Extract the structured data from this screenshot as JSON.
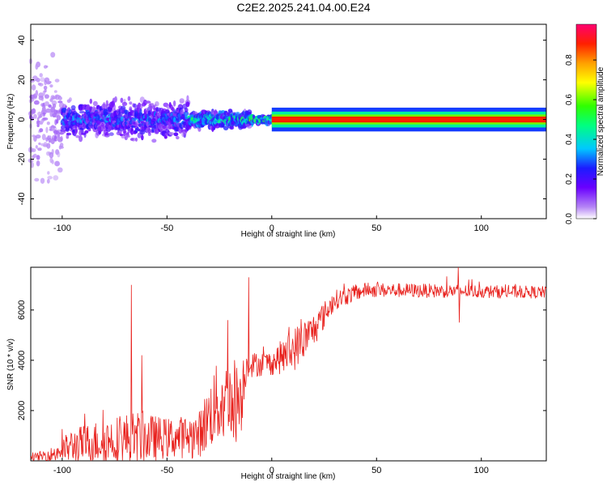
{
  "title": "C2E2.2025.241.04.00.E24",
  "chart_data": [
    {
      "type": "heatmap",
      "xlabel": "Height of straight line (km)",
      "ylabel": "Frequency (Hz)",
      "xlim": [
        -115,
        131
      ],
      "ylim": [
        -50,
        48
      ],
      "xticks": [
        -100,
        -50,
        0,
        50,
        100
      ],
      "yticks": [
        -40,
        -20,
        0,
        20,
        40
      ],
      "colorbar": {
        "label": "Normalized spectral amplitude",
        "ticks": [
          "0.0",
          "0.2",
          "0.4",
          "0.6",
          "0.8"
        ],
        "tick_values": [
          0.0,
          0.2,
          0.4,
          0.6,
          0.8
        ],
        "range": [
          0,
          0.98
        ]
      },
      "bands": [
        {
          "x_from": -115,
          "x_to": -100,
          "spread_hz": 48,
          "amplitude": 0.08
        },
        {
          "x_from": -100,
          "x_to": -40,
          "spread_hz": 12,
          "amplitude": 0.3
        },
        {
          "x_from": -40,
          "x_to": -10,
          "spread_hz": 6,
          "amplitude": 0.45
        },
        {
          "x_from": -10,
          "x_to": 0,
          "spread_hz": 3,
          "amplitude": 0.6
        },
        {
          "x_from": 0,
          "x_to": 131,
          "spread_hz": 3,
          "amplitude": 0.95
        }
      ]
    },
    {
      "type": "line",
      "xlabel": "Height of straight line (km)",
      "ylabel": "SNR (10 * v/v)",
      "xlim": [
        -115,
        131
      ],
      "ylim": [
        0,
        7700
      ],
      "xticks": [
        -100,
        -50,
        0,
        50,
        100
      ],
      "yticks": [
        2000,
        4000,
        6000
      ],
      "color": "#e8201c",
      "envelope": [
        {
          "x": -115,
          "base": 120,
          "amp": 120
        },
        {
          "x": -105,
          "base": 250,
          "amp": 300
        },
        {
          "x": -95,
          "base": 600,
          "amp": 700
        },
        {
          "x": -80,
          "base": 800,
          "amp": 900
        },
        {
          "x": -65,
          "base": 900,
          "amp": 1100
        },
        {
          "x": -50,
          "base": 900,
          "amp": 800
        },
        {
          "x": -35,
          "base": 1000,
          "amp": 900
        },
        {
          "x": -27,
          "base": 2200,
          "amp": 1600
        },
        {
          "x": -15,
          "base": 2500,
          "amp": 1800
        },
        {
          "x": -12,
          "base": 3800,
          "amp": 500
        },
        {
          "x": 0,
          "base": 3900,
          "amp": 500
        },
        {
          "x": 10,
          "base": 4400,
          "amp": 900
        },
        {
          "x": 20,
          "base": 5200,
          "amp": 700
        },
        {
          "x": 30,
          "base": 6400,
          "amp": 400
        },
        {
          "x": 45,
          "base": 6800,
          "amp": 300
        },
        {
          "x": 131,
          "base": 6700,
          "amp": 250
        }
      ],
      "spikes": [
        {
          "x": -67,
          "y": 7000
        },
        {
          "x": -62,
          "y": 4200
        },
        {
          "x": -11,
          "y": 7300
        },
        {
          "x": -21,
          "y": 5600
        },
        {
          "x": 89,
          "y": 7700
        },
        {
          "x": 89.5,
          "y": 5500
        }
      ]
    }
  ]
}
